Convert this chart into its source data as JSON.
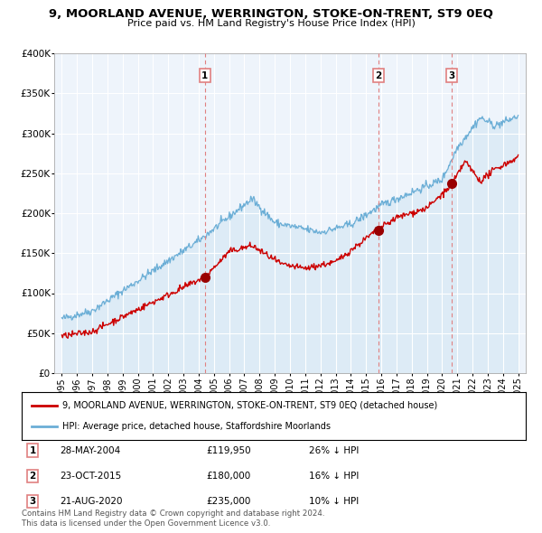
{
  "title": "9, MOORLAND AVENUE, WERRINGTON, STOKE-ON-TRENT, ST9 0EQ",
  "subtitle": "Price paid vs. HM Land Registry's House Price Index (HPI)",
  "legend_line1": "9, MOORLAND AVENUE, WERRINGTON, STOKE-ON-TRENT, ST9 0EQ (detached house)",
  "legend_line2": "HPI: Average price, detached house, Staffordshire Moorlands",
  "footer1": "Contains HM Land Registry data © Crown copyright and database right 2024.",
  "footer2": "This data is licensed under the Open Government Licence v3.0.",
  "sales": [
    {
      "num": 1,
      "date": "28-MAY-2004",
      "price": 119950,
      "price_str": "£119,950",
      "pct": "26% ↓ HPI",
      "x": 2004.41
    },
    {
      "num": 2,
      "date": "23-OCT-2015",
      "price": 180000,
      "price_str": "£180,000",
      "pct": "16% ↓ HPI",
      "x": 2015.81
    },
    {
      "num": 3,
      "date": "21-AUG-2020",
      "price": 235000,
      "price_str": "£235,000",
      "pct": "10% ↓ HPI",
      "x": 2020.64
    }
  ],
  "hpi_color": "#6baed6",
  "hpi_fill_color": "#d6e8f5",
  "price_color": "#cc0000",
  "sale_marker_color": "#990000",
  "vline_color": "#e08080",
  "background_color": "#ffffff",
  "chart_bg_color": "#eef4fb",
  "ylim": [
    0,
    400000
  ],
  "xlim_start": 1994.5,
  "xlim_end": 2025.5,
  "yticks": [
    0,
    50000,
    100000,
    150000,
    200000,
    250000,
    300000,
    350000,
    400000
  ],
  "ytick_labels": [
    "£0",
    "£50K",
    "£100K",
    "£150K",
    "£200K",
    "£250K",
    "£300K",
    "£350K",
    "£400K"
  ],
  "xticks": [
    1995,
    1996,
    1997,
    1998,
    1999,
    2000,
    2001,
    2002,
    2003,
    2004,
    2005,
    2006,
    2007,
    2008,
    2009,
    2010,
    2011,
    2012,
    2013,
    2014,
    2015,
    2016,
    2017,
    2018,
    2019,
    2020,
    2021,
    2022,
    2023,
    2024,
    2025
  ]
}
